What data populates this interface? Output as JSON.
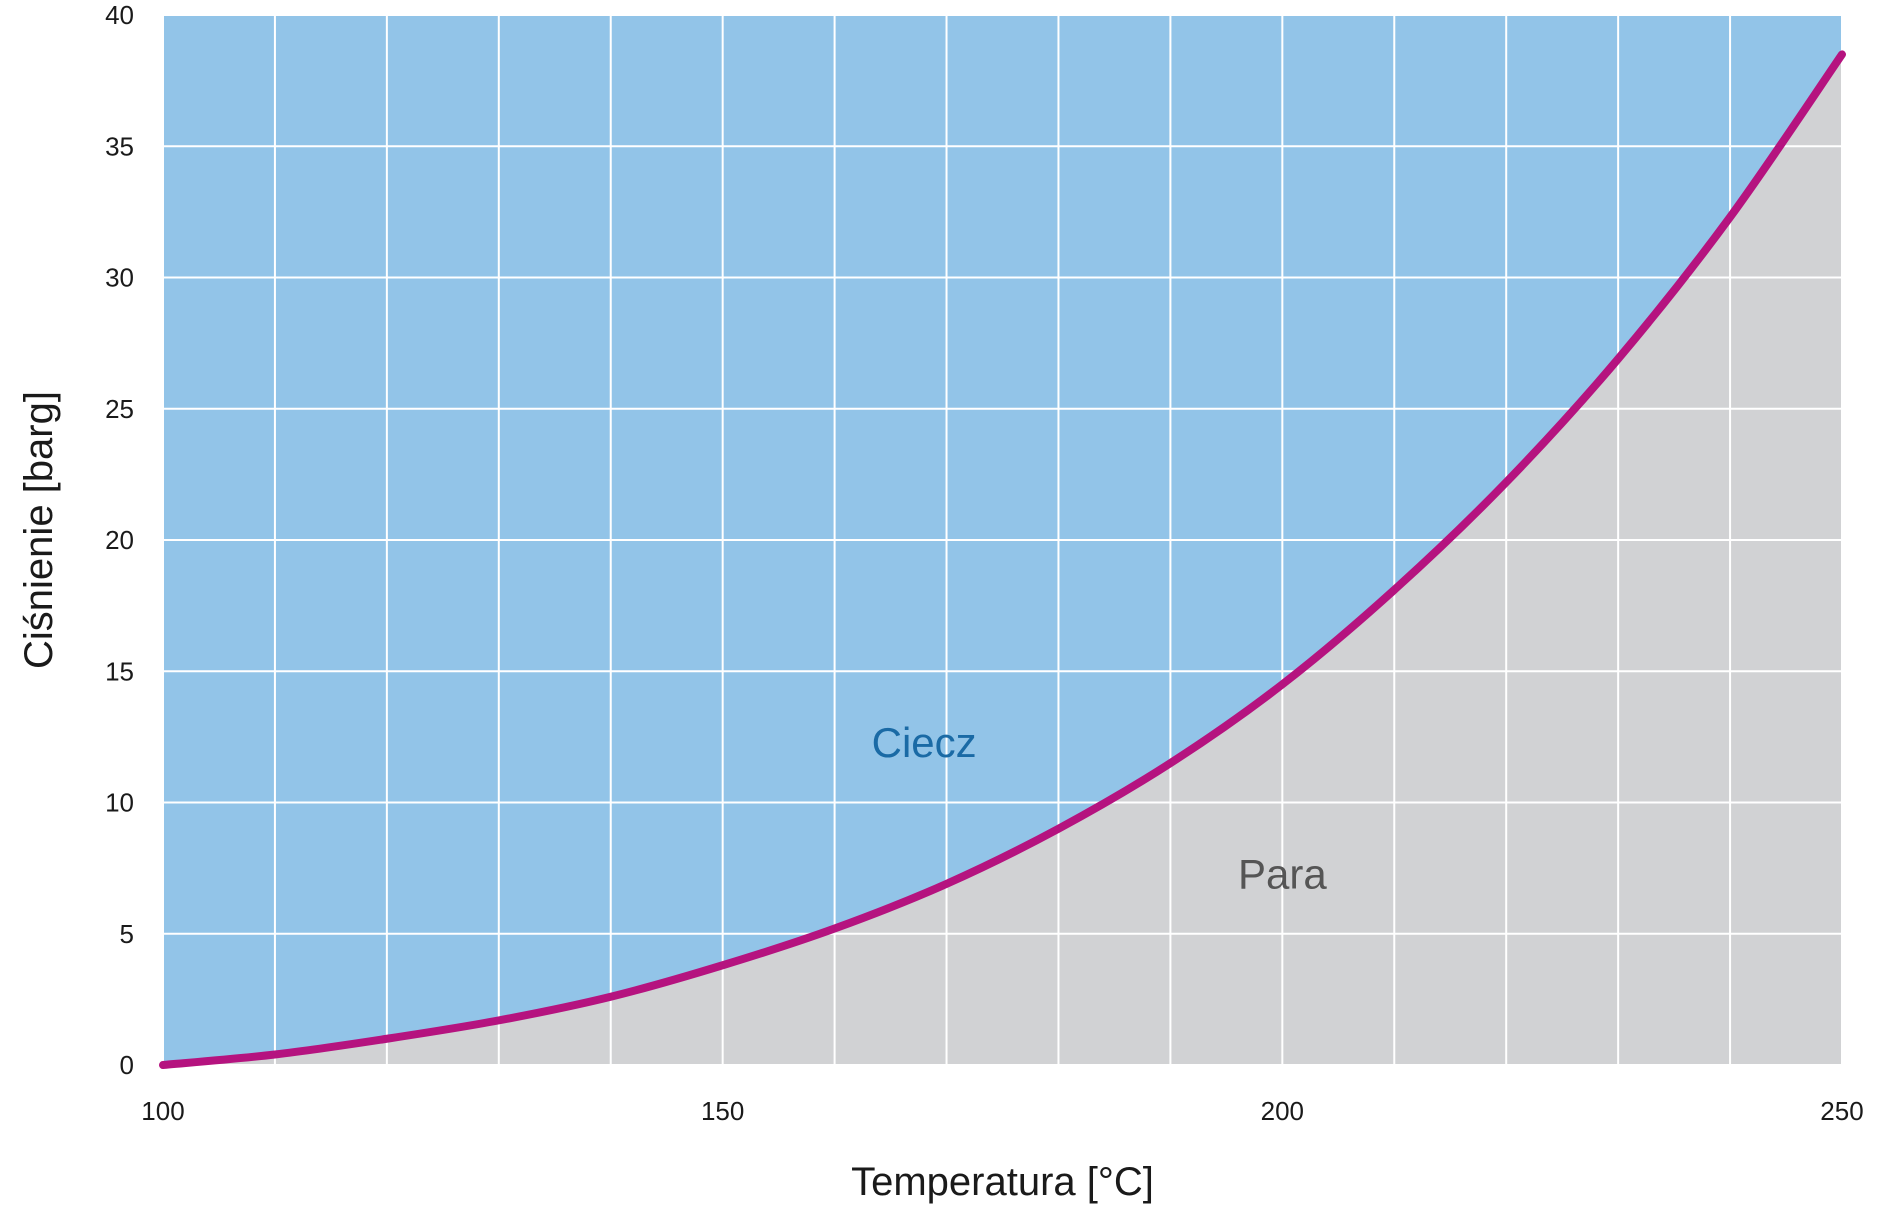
{
  "chart_data": {
    "type": "area",
    "xlabel": "Temperatura [°C]",
    "ylabel": "Ciśnienie [barg]",
    "xlim": [
      100,
      250
    ],
    "ylim": [
      0,
      40
    ],
    "x_ticks": [
      100,
      150,
      200,
      250
    ],
    "y_ticks": [
      0,
      5,
      10,
      15,
      20,
      25,
      30,
      35,
      40
    ],
    "x_grid_step": 10,
    "y_grid_step": 5,
    "grid": true,
    "series": [
      {
        "x": [
          100,
          110,
          120,
          130,
          140,
          150,
          160,
          170,
          180,
          190,
          200,
          210,
          220,
          230,
          240,
          250
        ],
        "y": [
          0.0,
          0.4,
          1.0,
          1.7,
          2.6,
          3.8,
          5.2,
          6.9,
          9.0,
          11.5,
          14.5,
          18.1,
          22.2,
          26.9,
          32.3,
          38.5
        ]
      }
    ],
    "regions": [
      {
        "label": "Ciecz",
        "x": 168,
        "y": 12.3
      },
      {
        "label": "Para",
        "x": 200,
        "y": 7.3
      }
    ],
    "colors": {
      "liquid_fill": "#92c4e8",
      "vapor_fill": "#d1d2d4",
      "curve": "#b5137f",
      "grid": "#ffffff",
      "liquid_label": "#1a6aa5",
      "vapor_label": "#555555"
    }
  }
}
